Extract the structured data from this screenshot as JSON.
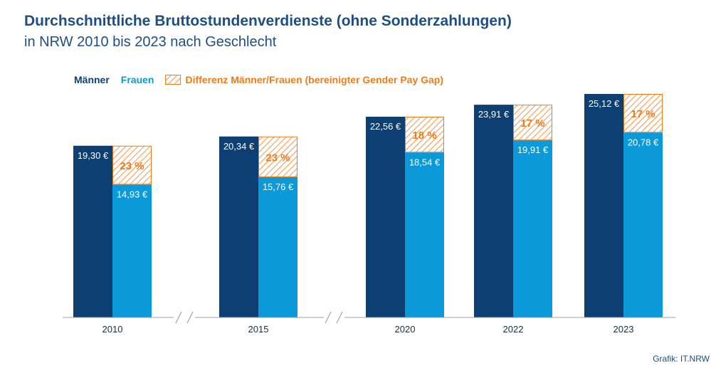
{
  "title": "Durchschnittliche Bruttostundenverdienste (ohne Sonderzahlungen)",
  "subtitle": "in NRW 2010 bis 2023 nach Geschlecht",
  "source": "Grafik: IT.NRW",
  "colors": {
    "men": "#0d3f72",
    "women": "#0a99d9",
    "gap": "#ef7b1b",
    "title": "#1d4e85",
    "axis": "#9aa3ad"
  },
  "legend": {
    "men": "Männer",
    "women": "Frauen",
    "gap": "Differenz Männer/Frauen (bereinigter Gender Pay Gap)"
  },
  "chart_data": {
    "type": "bar",
    "categories": [
      "2010",
      "2015",
      "2020",
      "2022",
      "2023"
    ],
    "series": [
      {
        "name": "Männer",
        "values": [
          19.3,
          20.34,
          22.56,
          23.91,
          25.12
        ],
        "labels": [
          "19,30 €",
          "20,34 €",
          "22,56 €",
          "23,91 €",
          "25,12 €"
        ]
      },
      {
        "name": "Frauen",
        "values": [
          14.93,
          15.76,
          18.54,
          19.91,
          20.78
        ],
        "labels": [
          "14,93 €",
          "15,76 €",
          "18,54 €",
          "19,91 €",
          "20,78 €"
        ]
      }
    ],
    "gap": {
      "name": "Differenz Männer/Frauen (bereinigter Gender Pay Gap)",
      "values": [
        23,
        23,
        18,
        17,
        17
      ],
      "labels": [
        "23 %",
        "23 %",
        "18 %",
        "17 %",
        "17 %"
      ]
    },
    "axis_breaks_after": [
      "2010",
      "2015"
    ],
    "ylim": [
      0,
      25.12
    ],
    "grid": false,
    "legend_position": "top-left"
  }
}
